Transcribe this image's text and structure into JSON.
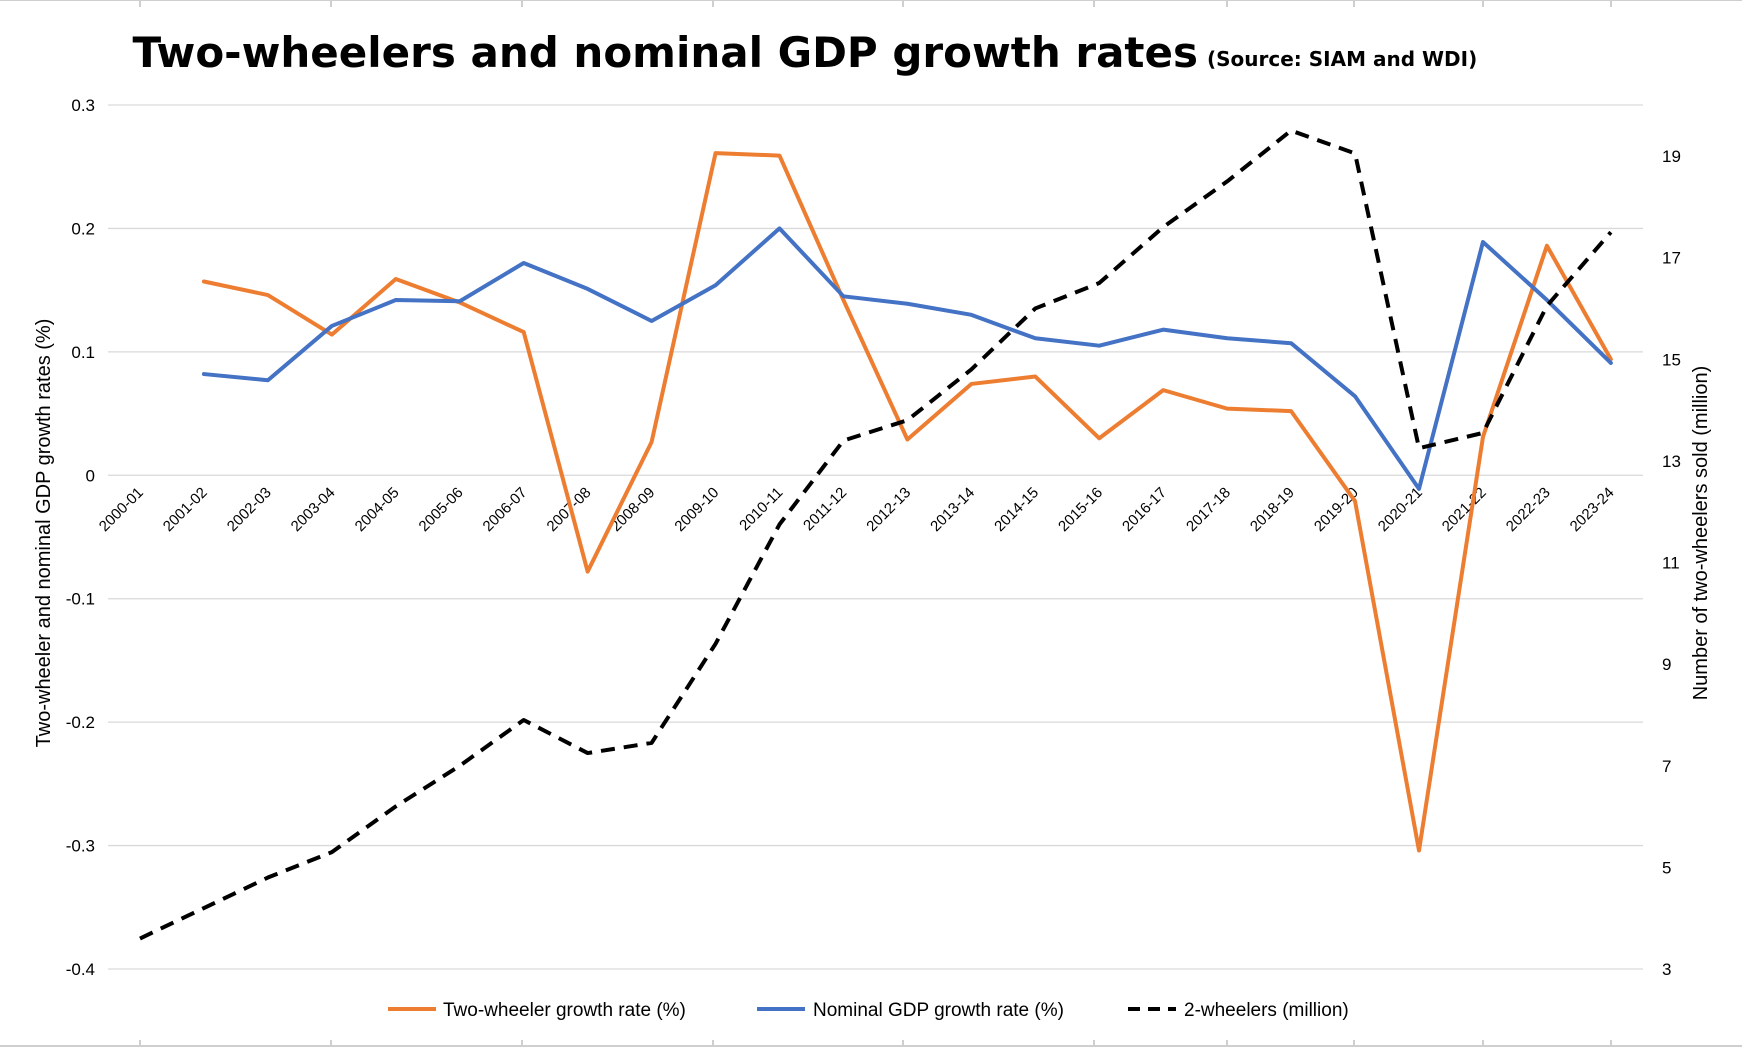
{
  "chart_data": {
    "type": "line",
    "title": "Two-wheelers and nominal GDP growth rates",
    "subtitle": "(Source: SIAM and WDI)",
    "ylabel": "Two-wheeler and nominal GDP growth rates (%)",
    "y2label": "Number of two-wheelers sold (million)",
    "xlabel": "",
    "ylim": [
      -0.4,
      0.3
    ],
    "y_ticks": [
      0.3,
      0.2,
      0.1,
      0,
      -0.1,
      -0.2,
      -0.3,
      -0.4
    ],
    "y_tick_labels": [
      "0.3",
      "0.2",
      "0.1",
      "0",
      "-0.1",
      "-0.2",
      "-0.3",
      "-0.4"
    ],
    "y2_ticks": [
      19,
      17,
      15,
      13,
      11,
      9,
      7,
      5,
      3
    ],
    "y2_tick_labels": [
      "19",
      "17",
      "15",
      "13",
      "11",
      "9",
      "7",
      "5",
      "3"
    ],
    "grid": true,
    "legend_position": "bottom",
    "categories": [
      "2000-01",
      "2001-02",
      "2002-03",
      "2003-04",
      "2004-05",
      "2005-06",
      "2006-07",
      "2007-08",
      "2008-09",
      "2009-10",
      "2010-11",
      "2011-12",
      "2012-13",
      "2013-14",
      "2014-15",
      "2015-16",
      "2016-17",
      "2017-18",
      "2018-19",
      "2019-20",
      "2020-21",
      "2021-22",
      "2022-23",
      "2023-24"
    ],
    "series": [
      {
        "name": "Two-wheeler growth rate (%)",
        "axis": "left",
        "color": "#ED7D31",
        "dash": "solid",
        "values": [
          null,
          0.157,
          0.146,
          0.114,
          0.159,
          0.14,
          0.116,
          -0.078,
          0.027,
          0.261,
          0.259,
          0.142,
          0.029,
          0.074,
          0.08,
          0.03,
          0.069,
          0.054,
          0.052,
          -0.021,
          -0.304,
          0.031,
          0.186,
          0.094
        ]
      },
      {
        "name": "Nominal GDP growth rate (%)",
        "axis": "left",
        "color": "#4472C4",
        "dash": "solid",
        "values": [
          null,
          0.082,
          0.077,
          0.121,
          0.142,
          0.141,
          0.172,
          0.151,
          0.125,
          0.154,
          0.2,
          0.145,
          0.139,
          0.13,
          0.111,
          0.105,
          0.118,
          0.111,
          0.107,
          0.064,
          -0.011,
          0.189,
          0.142,
          0.091
        ]
      },
      {
        "name": "2-wheelers (million)",
        "axis": "right",
        "color": "#000000",
        "dash": "dashed",
        "values": [
          3.6,
          4.2,
          4.8,
          5.3,
          6.2,
          7.0,
          7.9,
          7.25,
          7.45,
          9.4,
          11.75,
          13.4,
          13.8,
          14.8,
          16.0,
          16.5,
          17.6,
          18.5,
          19.5,
          19.05,
          13.25,
          13.55,
          16.05,
          17.5
        ]
      }
    ]
  }
}
